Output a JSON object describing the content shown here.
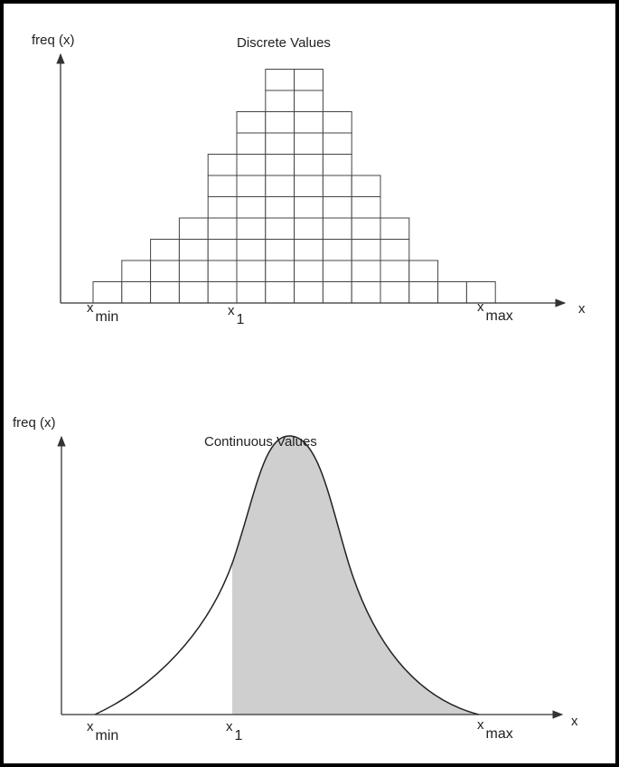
{
  "discrete": {
    "y_label": "freq (x)",
    "title": "Discrete Values",
    "columns": [
      1,
      2,
      3,
      4,
      7,
      9,
      11,
      11,
      9,
      6,
      4,
      2,
      1,
      1
    ],
    "x_min": {
      "base": "x",
      "sub": "min"
    },
    "x_1": {
      "base": "x",
      "sub": "1"
    },
    "x_max": {
      "base": "x",
      "sub": "max"
    },
    "x_label": "x"
  },
  "continuous": {
    "y_label": "freq (x)",
    "title": "Continuous Values",
    "x_min": {
      "base": "x",
      "sub": "min"
    },
    "x_1": {
      "base": "x",
      "sub": "1"
    },
    "x_max": {
      "base": "x",
      "sub": "max"
    },
    "x_label": "x"
  }
}
